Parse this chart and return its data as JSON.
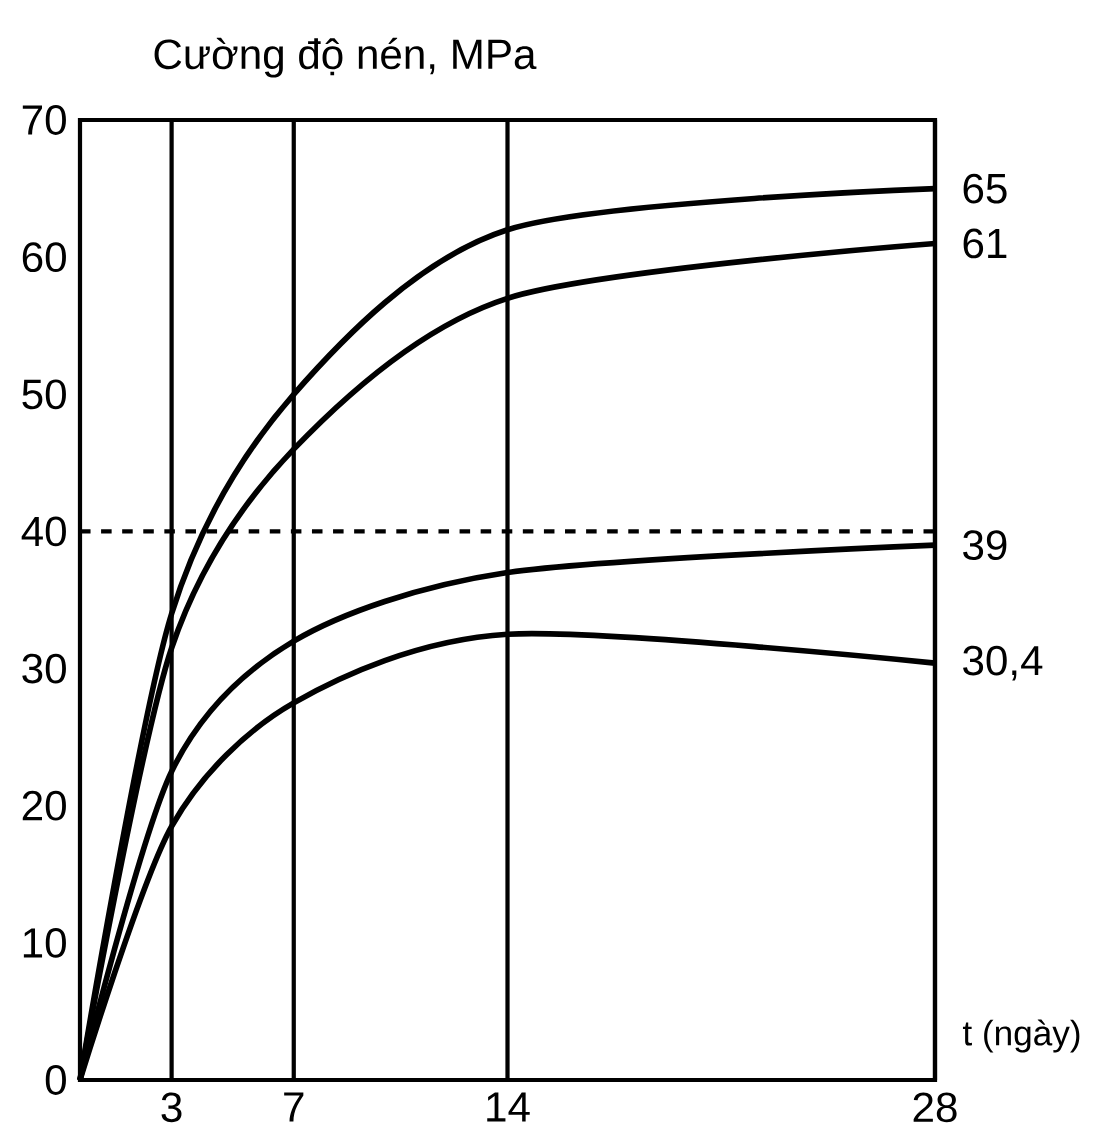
{
  "chart_data": {
    "type": "line",
    "ylabel": "Cường độ nén, MPa",
    "xlabel": "t (ngày)",
    "x": [
      0,
      3,
      7,
      14,
      28
    ],
    "xlim": [
      0,
      28
    ],
    "xticks": [
      3,
      7,
      14,
      28
    ],
    "ylim": [
      0,
      70
    ],
    "yticks": [
      0,
      10,
      20,
      30,
      40,
      50,
      60,
      70
    ],
    "grid": "x",
    "marker": "none",
    "line_style": "solid",
    "series": [
      {
        "color": "#000000",
        "values": [
          0,
          34,
          50,
          62,
          65
        ],
        "value_labels": [
          null,
          null,
          null,
          null,
          "65"
        ]
      },
      {
        "color": "#000000",
        "values": [
          0,
          31.5,
          46,
          57,
          61
        ],
        "value_labels": [
          null,
          null,
          null,
          null,
          "61"
        ]
      },
      {
        "color": "#000000",
        "values": [
          0,
          22.5,
          32,
          37,
          39
        ],
        "value_labels": [
          null,
          null,
          null,
          null,
          "39"
        ]
      },
      {
        "color": "#000000",
        "values": [
          0,
          18.5,
          27.5,
          32.5,
          30.4
        ],
        "value_labels": [
          null,
          null,
          null,
          null,
          "30,4"
        ]
      }
    ],
    "ref_lines": [
      {
        "axis": "y",
        "value": 40,
        "line_style": "dashed",
        "color": "#000000"
      }
    ]
  }
}
